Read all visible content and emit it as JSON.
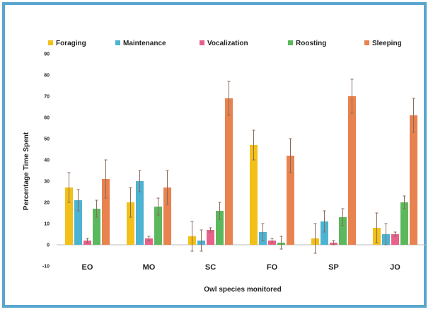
{
  "chart_data": {
    "type": "bar",
    "title": "",
    "xlabel": "Owl species monitored",
    "ylabel": "Percentage Time Spent",
    "categories": [
      "EO",
      "MO",
      "SC",
      "FO",
      "SP",
      "JO"
    ],
    "ylim": [
      -10,
      90
    ],
    "yticks": [
      -10,
      0,
      10,
      20,
      30,
      40,
      50,
      60,
      70,
      80,
      90
    ],
    "grid": false,
    "legend_position": "top",
    "series": [
      {
        "name": "Foraging",
        "color": "#f2c018",
        "values": [
          27,
          20,
          4,
          47,
          3,
          8
        ],
        "errors": [
          7,
          7,
          7,
          7,
          7,
          7
        ]
      },
      {
        "name": "Maintenance",
        "color": "#4db3d3",
        "values": [
          21,
          30,
          2,
          6,
          11,
          5
        ],
        "errors": [
          5,
          5,
          5,
          4,
          5,
          5
        ]
      },
      {
        "name": "Vocalization",
        "color": "#e8618a",
        "values": [
          2,
          3,
          7,
          2,
          1,
          5
        ],
        "errors": [
          1,
          1,
          1,
          1,
          1,
          1
        ]
      },
      {
        "name": "Roosting",
        "color": "#5cb85c",
        "values": [
          17,
          18,
          16,
          1,
          13,
          20
        ],
        "errors": [
          4,
          4,
          4,
          3,
          4,
          3
        ]
      },
      {
        "name": "Sleeping",
        "color": "#e8824f",
        "values": [
          31,
          27,
          69,
          42,
          70,
          61
        ],
        "errors": [
          9,
          8,
          8,
          8,
          8,
          8
        ]
      }
    ]
  }
}
